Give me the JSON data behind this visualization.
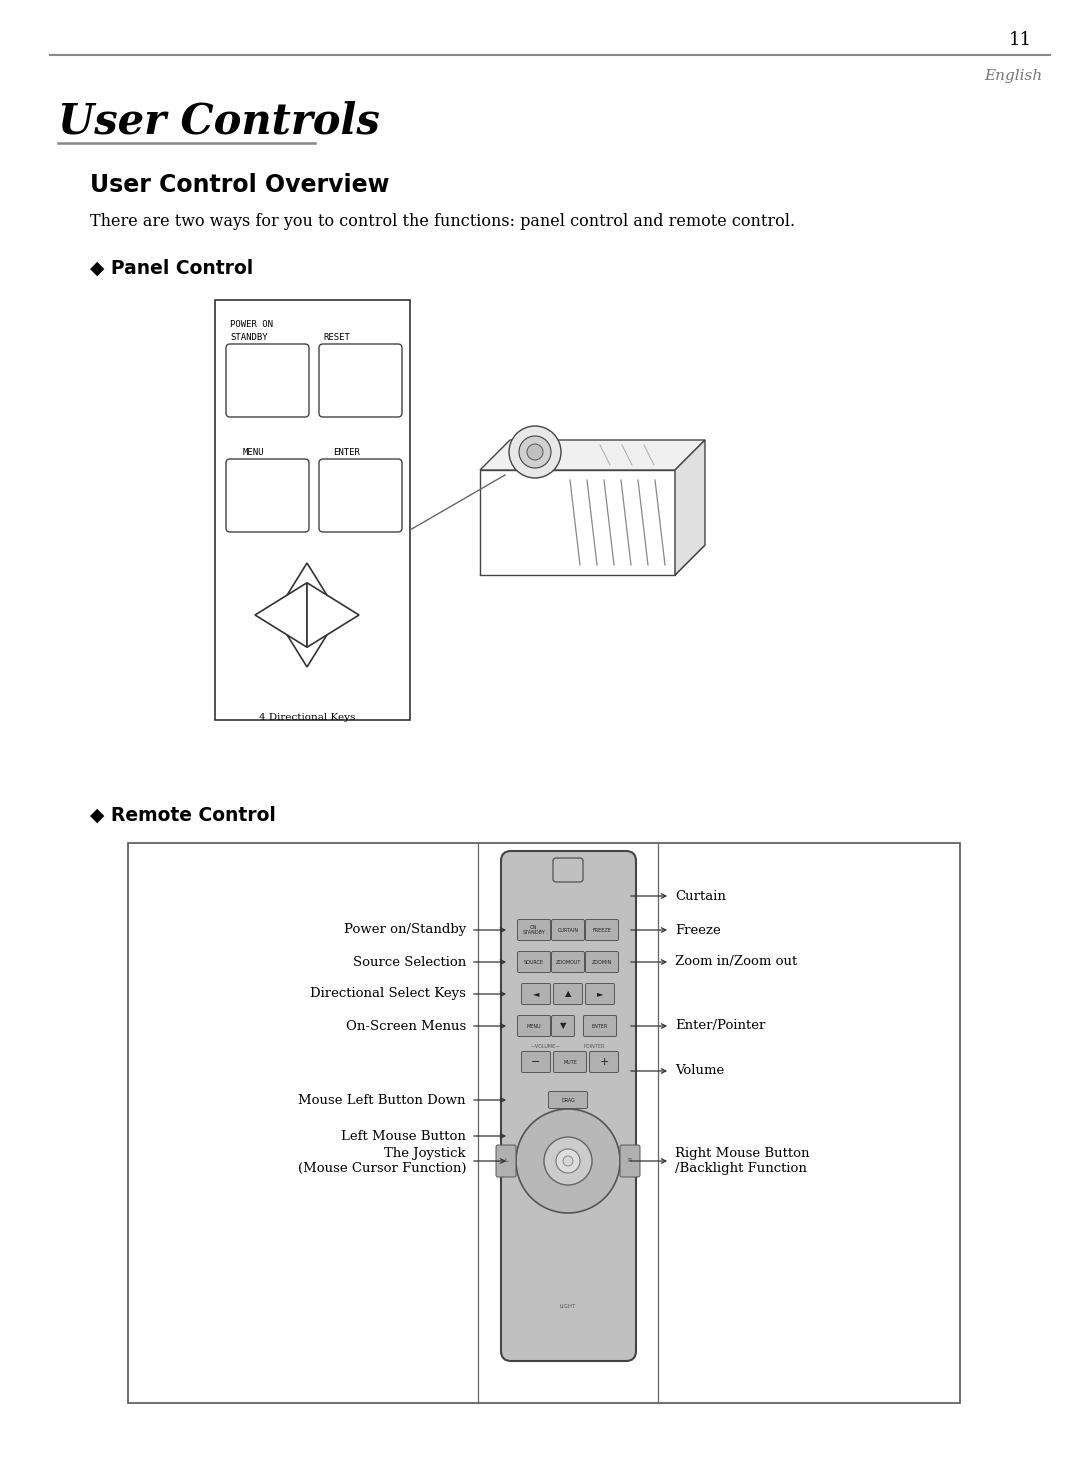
{
  "page_number": "11",
  "page_lang": "English",
  "title": "User Controls",
  "section_title": "User Control Overview",
  "section_desc": "There are two ways for you to control the functions: panel control and remote control.",
  "panel_heading": "◆ Panel Control",
  "remote_heading": "◆ Remote Control",
  "panel_labels": {
    "power_on": "POWER ON",
    "standby": "STANDBY",
    "reset": "RESET",
    "menu": "MENU",
    "enter": "ENTER",
    "dir_keys": "4 Directional Keys"
  },
  "remote_left_labels": [
    [
      "Power on/Standby",
      0
    ],
    [
      "Source Selection",
      1
    ],
    [
      "Directional Select Keys",
      2
    ],
    [
      "On-Screen Menus",
      3
    ],
    [
      "Mouse Left Button Down",
      4
    ],
    [
      "Left Mouse Button",
      5
    ],
    [
      "The Joystick\n(Mouse Cursor Function)",
      6
    ]
  ],
  "remote_right_labels": [
    [
      "Curtain",
      0
    ],
    [
      "Freeze",
      1
    ],
    [
      "Zoom in/Zoom out",
      2
    ],
    [
      "Enter/Pointer",
      3
    ],
    [
      "Volume",
      4
    ],
    [
      "Right Mouse Button\n/Backlight Function",
      5
    ]
  ],
  "bg_color": "#ffffff",
  "text_color": "#000000",
  "gray_line": "#888888",
  "dark_line": "#333333",
  "mid_gray": "#666666",
  "btn_face": "#b0b0b0",
  "btn_edge": "#555555",
  "remote_face": "#c0c0c0",
  "remote_edge": "#444444"
}
